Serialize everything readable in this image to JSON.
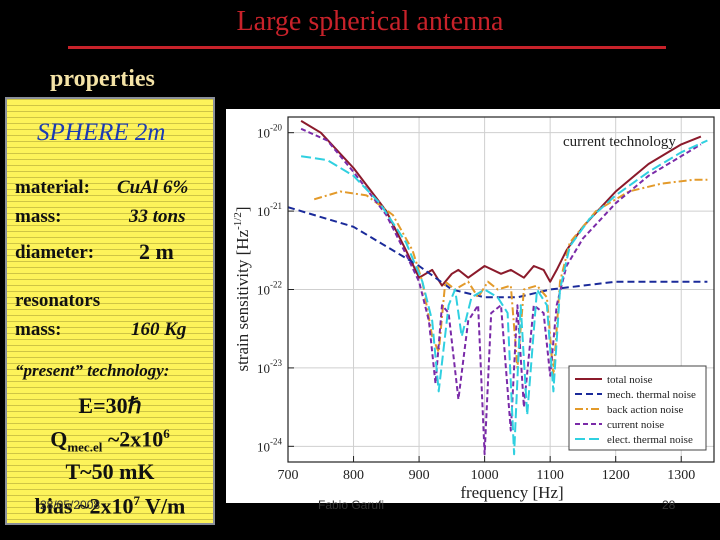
{
  "slide": {
    "title": "Large spherical antenna",
    "section": "properties",
    "footer_date": "28/05/2008",
    "footer_author": "Fabio Garufi",
    "footer_page": "28"
  },
  "panel": {
    "heading": "SPHERE 2m",
    "material_label": "material:",
    "material_value": "CuAl 6%",
    "mass_label": "mass:",
    "mass_value": "33 tons",
    "diameter_label": "diameter:",
    "diameter_value": "2 m",
    "resonators_label": "resonators",
    "res_mass_label": "mass:",
    "res_mass_value": "160 Kg",
    "tech_label": "“present” technology:",
    "energy": "E=30ℏ",
    "q_prefix": "Q",
    "q_sub": "mec.el",
    "q_mid": " ~2x10",
    "q_exp": "6",
    "temp": "T~50 mK",
    "bias_prefix": "bias ~2x10",
    "bias_exp": "7",
    "bias_unit": " V/m"
  },
  "colors": {
    "total": "#8b1a2b",
    "mech": "#1a2a9a",
    "backaction": "#e39a2a",
    "current": "#7a2aa8",
    "elect": "#30d0e0"
  },
  "chart_data": {
    "type": "line",
    "xlabel": "frequency [Hz]",
    "ylabel": "strain sensitivity [Hz",
    "ylabel_sup": "-1/2",
    "ylabel_end": "]",
    "annotation": "current technology",
    "xlim": [
      700,
      1350
    ],
    "ylim_log10": [
      -24.2,
      -19.8
    ],
    "x_ticks": [
      "700",
      "800",
      "900",
      "1000",
      "1100",
      "1200",
      "1300"
    ],
    "y_ticks": [
      {
        "base": "10",
        "exp": "-20"
      },
      {
        "base": "10",
        "exp": "-21"
      },
      {
        "base": "10",
        "exp": "-22"
      },
      {
        "base": "10",
        "exp": "-23"
      },
      {
        "base": "10",
        "exp": "-24"
      }
    ],
    "legend_position": "bottom-right",
    "series": [
      {
        "name": "total noise",
        "key": "total",
        "x": [
          720,
          750,
          800,
          850,
          880,
          900,
          920,
          935,
          950,
          960,
          975,
          1000,
          1025,
          1040,
          1060,
          1075,
          1090,
          1100,
          1110,
          1125,
          1150,
          1200,
          1250,
          1300,
          1330
        ],
        "log10_y": [
          -19.85,
          -20.0,
          -20.45,
          -21.0,
          -21.5,
          -21.85,
          -21.75,
          -21.95,
          -21.8,
          -21.75,
          -21.85,
          -21.7,
          -21.8,
          -21.75,
          -21.85,
          -21.7,
          -21.75,
          -21.9,
          -21.75,
          -21.5,
          -21.2,
          -20.75,
          -20.4,
          -20.15,
          -20.05
        ]
      },
      {
        "name": "mech. thermal noise",
        "key": "mech",
        "x": [
          700,
          800,
          900,
          950,
          1000,
          1050,
          1100,
          1150,
          1200,
          1250,
          1300,
          1340
        ],
        "log10_y": [
          -20.95,
          -21.2,
          -21.7,
          -22.0,
          -22.1,
          -22.1,
          -22.0,
          -21.95,
          -21.9,
          -21.9,
          -21.9,
          -21.9
        ]
      },
      {
        "name": "back action noise",
        "key": "backaction",
        "x": [
          740,
          780,
          820,
          860,
          890,
          905,
          920,
          930,
          940,
          955,
          975,
          990,
          1005,
          1020,
          1040,
          1050,
          1060,
          1080,
          1095,
          1105,
          1115,
          1130,
          1170,
          1220,
          1270,
          1320,
          1340
        ],
        "log10_y": [
          -20.85,
          -20.75,
          -20.8,
          -21.05,
          -21.5,
          -21.9,
          -22.6,
          -22.8,
          -21.9,
          -22.0,
          -21.9,
          -22.1,
          -21.9,
          -22.0,
          -21.95,
          -23.0,
          -22.0,
          -21.95,
          -22.1,
          -23.1,
          -21.9,
          -21.4,
          -21.0,
          -20.75,
          -20.65,
          -20.6,
          -20.6
        ]
      },
      {
        "name": "current noise",
        "key": "current",
        "x": [
          720,
          760,
          800,
          850,
          880,
          900,
          915,
          925,
          935,
          945,
          960,
          975,
          990,
          1000,
          1010,
          1025,
          1040,
          1050,
          1060,
          1075,
          1090,
          1100,
          1110,
          1125,
          1150,
          1200,
          1250,
          1300,
          1330
        ],
        "log10_y": [
          -19.95,
          -20.1,
          -20.5,
          -21.05,
          -21.55,
          -21.9,
          -22.4,
          -23.2,
          -22.2,
          -22.3,
          -23.4,
          -22.4,
          -22.2,
          -24.1,
          -22.3,
          -22.2,
          -23.8,
          -22.2,
          -23.5,
          -22.2,
          -22.3,
          -23.1,
          -22.2,
          -21.7,
          -21.35,
          -20.9,
          -20.55,
          -20.3,
          -20.15
        ]
      },
      {
        "name": "elect. thermal noise",
        "key": "elect",
        "x": [
          720,
          760,
          800,
          840,
          880,
          905,
          920,
          930,
          945,
          955,
          965,
          980,
          1000,
          1020,
          1035,
          1045,
          1055,
          1065,
          1080,
          1095,
          1105,
          1115,
          1130,
          1160,
          1200,
          1250,
          1300,
          1340
        ],
        "log10_y": [
          -20.3,
          -20.35,
          -20.55,
          -20.9,
          -21.4,
          -21.9,
          -22.4,
          -23.3,
          -22.2,
          -22.0,
          -22.6,
          -22.1,
          -22.0,
          -22.1,
          -22.3,
          -24.1,
          -22.2,
          -23.6,
          -22.0,
          -22.2,
          -23.3,
          -22.0,
          -21.45,
          -21.1,
          -20.8,
          -20.5,
          -20.25,
          -20.1
        ]
      }
    ]
  }
}
